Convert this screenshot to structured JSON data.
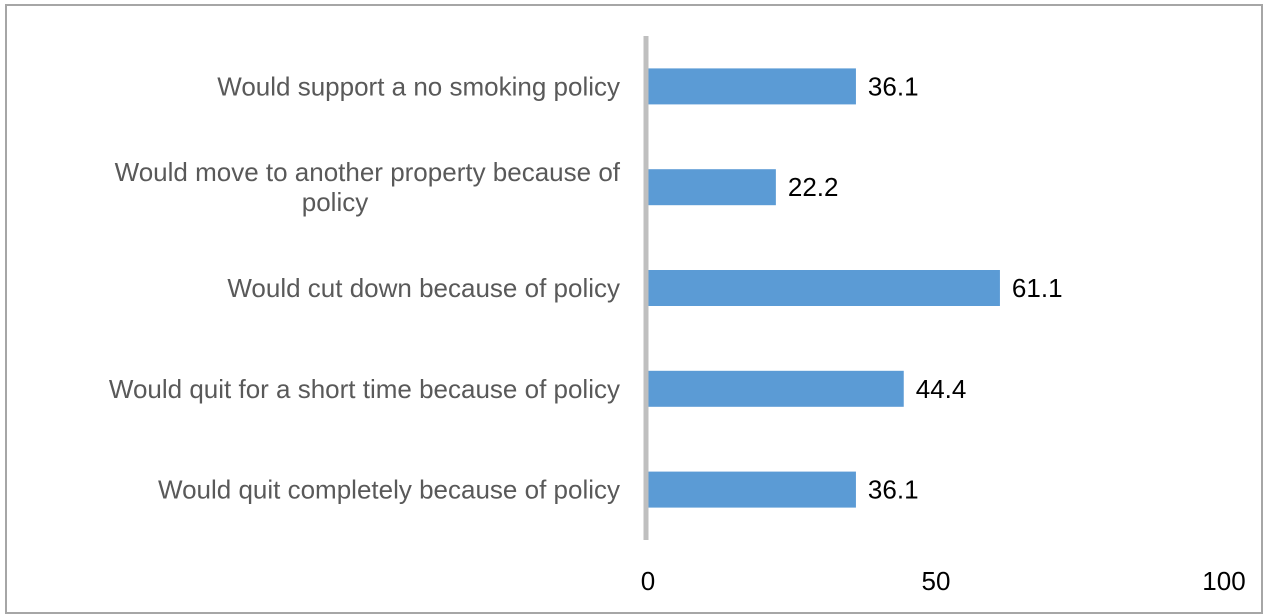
{
  "chart_data": {
    "type": "bar",
    "orientation": "horizontal",
    "categories": [
      [
        "Would support a no smoking policy"
      ],
      [
        "Would move to another property because of",
        "policy"
      ],
      [
        "Would cut down because of policy"
      ],
      [
        "Would quit for a short time because of policy"
      ],
      [
        "Would quit completely because of policy"
      ]
    ],
    "values": [
      36.1,
      22.2,
      61.1,
      44.4,
      36.1
    ],
    "value_labels": [
      "36.1",
      "22.2",
      "61.1",
      "44.4",
      "36.1"
    ],
    "xlim": [
      0,
      100
    ],
    "x_ticks": [
      0,
      50,
      100
    ],
    "x_tick_labels": [
      "0",
      "50",
      "100"
    ],
    "grid": false,
    "legend": "none",
    "colors": {
      "bar": "#5b9bd5",
      "axis": "#bfbfbf",
      "frame": "#a6a6a6",
      "category_text": "#595959",
      "value_text": "#000000"
    }
  }
}
